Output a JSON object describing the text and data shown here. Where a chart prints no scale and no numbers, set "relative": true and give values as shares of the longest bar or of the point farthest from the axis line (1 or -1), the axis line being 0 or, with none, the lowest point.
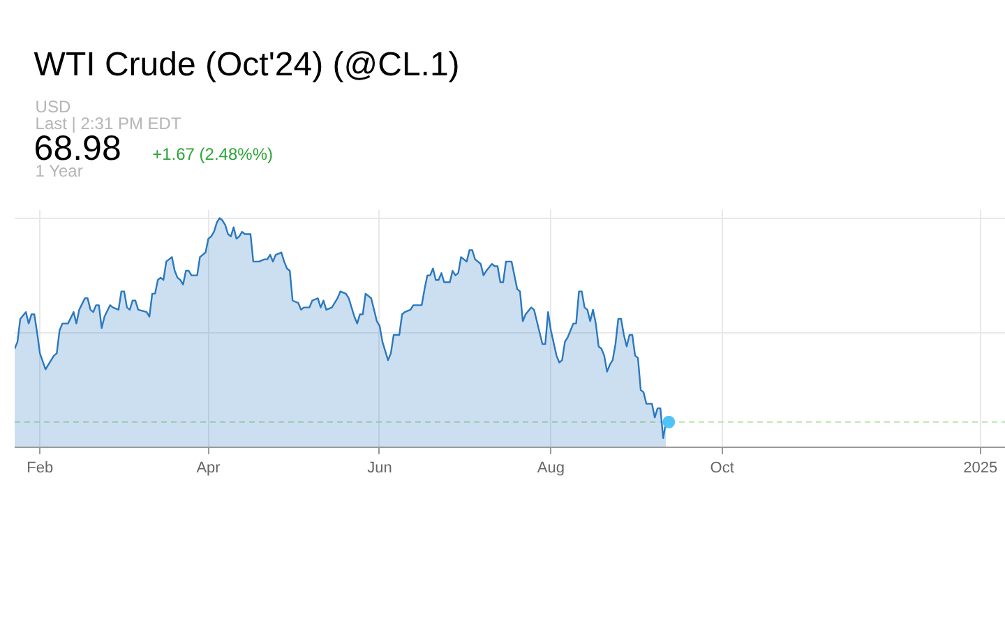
{
  "chart_data": {
    "type": "area",
    "title": "WTI Crude (Oct'24) (@CL.1)",
    "annotations": [
      "USD",
      "Last | 2:31 PM EDT",
      "68.98",
      "+1.67 (2.48%%)",
      "1 Year"
    ],
    "relative": true,
    "grid": true,
    "xlim": [
      "2024-01-23",
      "2025-01-10"
    ],
    "xticks": [
      {
        "value": "2024-02-01",
        "label": "Feb"
      },
      {
        "value": "2024-04-01",
        "label": "Apr"
      },
      {
        "value": "2024-06-01",
        "label": "Jun"
      },
      {
        "value": "2024-08-01",
        "label": "Aug"
      },
      {
        "value": "2024-10-01",
        "label": "Oct"
      },
      {
        "value": "2025-01-01",
        "label": "2025"
      }
    ],
    "ref_lines": [
      {
        "axis": "y",
        "value": 0.11,
        "color": "#b9e3ad",
        "line_style": "dashed"
      }
    ],
    "series": [
      {
        "color": "#2a78bf",
        "x": [
          "2024-01-23",
          "2024-01-24",
          "2024-01-25",
          "2024-01-27",
          "2024-01-28",
          "2024-01-29",
          "2024-01-30",
          "2024-01-31",
          "2024-02-01",
          "2024-02-03",
          "2024-02-04",
          "2024-02-05",
          "2024-02-06",
          "2024-02-07",
          "2024-02-08",
          "2024-02-09",
          "2024-02-11",
          "2024-02-13",
          "2024-02-14",
          "2024-02-15",
          "2024-02-17",
          "2024-02-18",
          "2024-02-19",
          "2024-02-20",
          "2024-02-21",
          "2024-02-22",
          "2024-02-23",
          "2024-02-24",
          "2024-02-26",
          "2024-02-27",
          "2024-02-29",
          "2024-03-01",
          "2024-03-02",
          "2024-03-03",
          "2024-03-04",
          "2024-03-05",
          "2024-03-06",
          "2024-03-07",
          "2024-03-10",
          "2024-03-11",
          "2024-03-12",
          "2024-03-13",
          "2024-03-14",
          "2024-03-15",
          "2024-03-16",
          "2024-03-17",
          "2024-03-18",
          "2024-03-19",
          "2024-03-20",
          "2024-03-21",
          "2024-03-22",
          "2024-03-23",
          "2024-03-24",
          "2024-03-25",
          "2024-03-26",
          "2024-03-28",
          "2024-03-29",
          "2024-03-30",
          "2024-03-31",
          "2024-04-01",
          "2024-04-02",
          "2024-04-03",
          "2024-04-04",
          "2024-04-05",
          "2024-04-06",
          "2024-04-07",
          "2024-04-08",
          "2024-04-09",
          "2024-04-10",
          "2024-04-11",
          "2024-04-12",
          "2024-04-13",
          "2024-04-14",
          "2024-04-16",
          "2024-04-17",
          "2024-04-19",
          "2024-04-21",
          "2024-04-22",
          "2024-04-23",
          "2024-04-24",
          "2024-04-25",
          "2024-04-27",
          "2024-04-28",
          "2024-04-29",
          "2024-04-30",
          "2024-05-01",
          "2024-05-03",
          "2024-05-04",
          "2024-05-05",
          "2024-05-07",
          "2024-05-08",
          "2024-05-10",
          "2024-05-11",
          "2024-05-12",
          "2024-05-13",
          "2024-05-15",
          "2024-05-17",
          "2024-05-18",
          "2024-05-20",
          "2024-05-21",
          "2024-05-23",
          "2024-05-24",
          "2024-05-25",
          "2024-05-26",
          "2024-05-27",
          "2024-05-28",
          "2024-05-29",
          "2024-05-30",
          "2024-05-31",
          "2024-06-01",
          "2024-06-02",
          "2024-06-04",
          "2024-06-05",
          "2024-06-06",
          "2024-06-08",
          "2024-06-09",
          "2024-06-10",
          "2024-06-12",
          "2024-06-13",
          "2024-06-16",
          "2024-06-17",
          "2024-06-18",
          "2024-06-19",
          "2024-06-20",
          "2024-06-21",
          "2024-06-22",
          "2024-06-23",
          "2024-06-24",
          "2024-06-26",
          "2024-06-27",
          "2024-06-28",
          "2024-06-29",
          "2024-06-30",
          "2024-07-01",
          "2024-07-02",
          "2024-07-03",
          "2024-07-04",
          "2024-07-05",
          "2024-07-07",
          "2024-07-08",
          "2024-07-09",
          "2024-07-11",
          "2024-07-12",
          "2024-07-13",
          "2024-07-14",
          "2024-07-15",
          "2024-07-16",
          "2024-07-18",
          "2024-07-20",
          "2024-07-21",
          "2024-07-22",
          "2024-07-23",
          "2024-07-25",
          "2024-07-26",
          "2024-07-27",
          "2024-07-28",
          "2024-07-29",
          "2024-07-30",
          "2024-07-31",
          "2024-08-01",
          "2024-08-03",
          "2024-08-04",
          "2024-08-05",
          "2024-08-06",
          "2024-08-07",
          "2024-08-08",
          "2024-08-09",
          "2024-08-10",
          "2024-08-11",
          "2024-08-12",
          "2024-08-13",
          "2024-08-14",
          "2024-08-15",
          "2024-08-16",
          "2024-08-17",
          "2024-08-18",
          "2024-08-19",
          "2024-08-20",
          "2024-08-21",
          "2024-08-22",
          "2024-08-23",
          "2024-08-24",
          "2024-08-25",
          "2024-08-26",
          "2024-08-27",
          "2024-08-28",
          "2024-08-29",
          "2024-08-30",
          "2024-08-31",
          "2024-09-01",
          "2024-09-02",
          "2024-09-03",
          "2024-09-04",
          "2024-09-06",
          "2024-09-07",
          "2024-09-08",
          "2024-09-09",
          "2024-09-10",
          "2024-09-11"
        ],
        "values": [
          0.43,
          0.46,
          0.56,
          0.59,
          0.54,
          0.58,
          0.58,
          0.5,
          0.41,
          0.34,
          0.36,
          0.38,
          0.4,
          0.41,
          0.51,
          0.54,
          0.54,
          0.59,
          0.54,
          0.6,
          0.65,
          0.65,
          0.6,
          0.59,
          0.62,
          0.62,
          0.52,
          0.57,
          0.62,
          0.61,
          0.6,
          0.68,
          0.68,
          0.61,
          0.6,
          0.64,
          0.64,
          0.6,
          0.59,
          0.57,
          0.67,
          0.67,
          0.73,
          0.74,
          0.73,
          0.81,
          0.82,
          0.83,
          0.77,
          0.74,
          0.73,
          0.71,
          0.77,
          0.77,
          0.75,
          0.75,
          0.83,
          0.84,
          0.85,
          0.91,
          0.92,
          0.94,
          0.98,
          1.0,
          0.99,
          0.97,
          0.93,
          0.92,
          0.96,
          0.91,
          0.92,
          0.94,
          0.93,
          0.93,
          0.81,
          0.81,
          0.82,
          0.82,
          0.84,
          0.81,
          0.84,
          0.85,
          0.81,
          0.78,
          0.77,
          0.64,
          0.63,
          0.6,
          0.61,
          0.61,
          0.64,
          0.65,
          0.61,
          0.64,
          0.6,
          0.61,
          0.65,
          0.68,
          0.67,
          0.65,
          0.57,
          0.54,
          0.58,
          0.58,
          0.67,
          0.66,
          0.65,
          0.6,
          0.55,
          0.53,
          0.46,
          0.38,
          0.41,
          0.49,
          0.49,
          0.58,
          0.59,
          0.6,
          0.62,
          0.62,
          0.69,
          0.75,
          0.75,
          0.78,
          0.73,
          0.73,
          0.76,
          0.72,
          0.72,
          0.77,
          0.75,
          0.76,
          0.83,
          0.82,
          0.81,
          0.86,
          0.86,
          0.82,
          0.8,
          0.75,
          0.77,
          0.8,
          0.79,
          0.79,
          0.72,
          0.72,
          0.81,
          0.81,
          0.69,
          0.68,
          0.55,
          0.58,
          0.61,
          0.6,
          0.55,
          0.5,
          0.45,
          0.45,
          0.59,
          0.51,
          0.4,
          0.37,
          0.38,
          0.46,
          0.48,
          0.51,
          0.54,
          0.54,
          0.68,
          0.68,
          0.61,
          0.6,
          0.55,
          0.6,
          0.54,
          0.44,
          0.43,
          0.4,
          0.33,
          0.36,
          0.38,
          0.45,
          0.56,
          0.56,
          0.49,
          0.44,
          0.49,
          0.49,
          0.4,
          0.39,
          0.25,
          0.24,
          0.19,
          0.19,
          0.13,
          0.17,
          0.17,
          0.04,
          0.11
        ]
      },
      {
        "type": "scatter",
        "color": "#4fc3f7",
        "marker": "circle",
        "x": [
          "2024-09-12"
        ],
        "values": [
          0.11
        ]
      }
    ]
  }
}
